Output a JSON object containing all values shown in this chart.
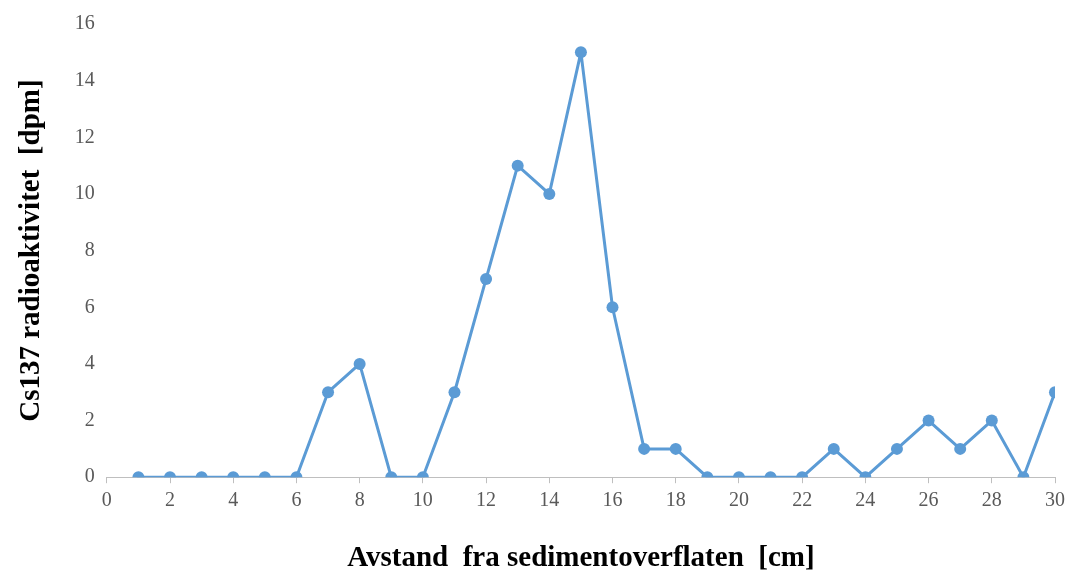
{
  "chart_data": {
    "type": "line",
    "xlabel": "Avstand  fra sedimentoverflaten  [cm]",
    "ylabel": "Cs137 radioaktivitet  [dpm]",
    "x": [
      1,
      2,
      3,
      4,
      5,
      6,
      7,
      8,
      9,
      10,
      11,
      12,
      13,
      14,
      15,
      16,
      17,
      18,
      19,
      20,
      21,
      22,
      23,
      24,
      25,
      26,
      27,
      28,
      29,
      30
    ],
    "series": [
      {
        "color": "#5b9bd5",
        "values": [
          0,
          0,
          0,
          0,
          0,
          0,
          3,
          4,
          0,
          0,
          3,
          7,
          11,
          10,
          15,
          6,
          1,
          1,
          0,
          0,
          0,
          0,
          1,
          0,
          1,
          2,
          1,
          2,
          0,
          3
        ]
      }
    ],
    "xlim": [
      0,
      30
    ],
    "xticks": [
      0,
      2,
      4,
      6,
      8,
      10,
      12,
      14,
      16,
      18,
      20,
      22,
      24,
      26,
      28,
      30
    ],
    "ylim": [
      0,
      16
    ],
    "yticks": [
      0,
      2,
      4,
      6,
      8,
      10,
      12,
      14,
      16
    ],
    "grid": false,
    "legend": false,
    "marker": "circle",
    "line_style": "solid"
  }
}
